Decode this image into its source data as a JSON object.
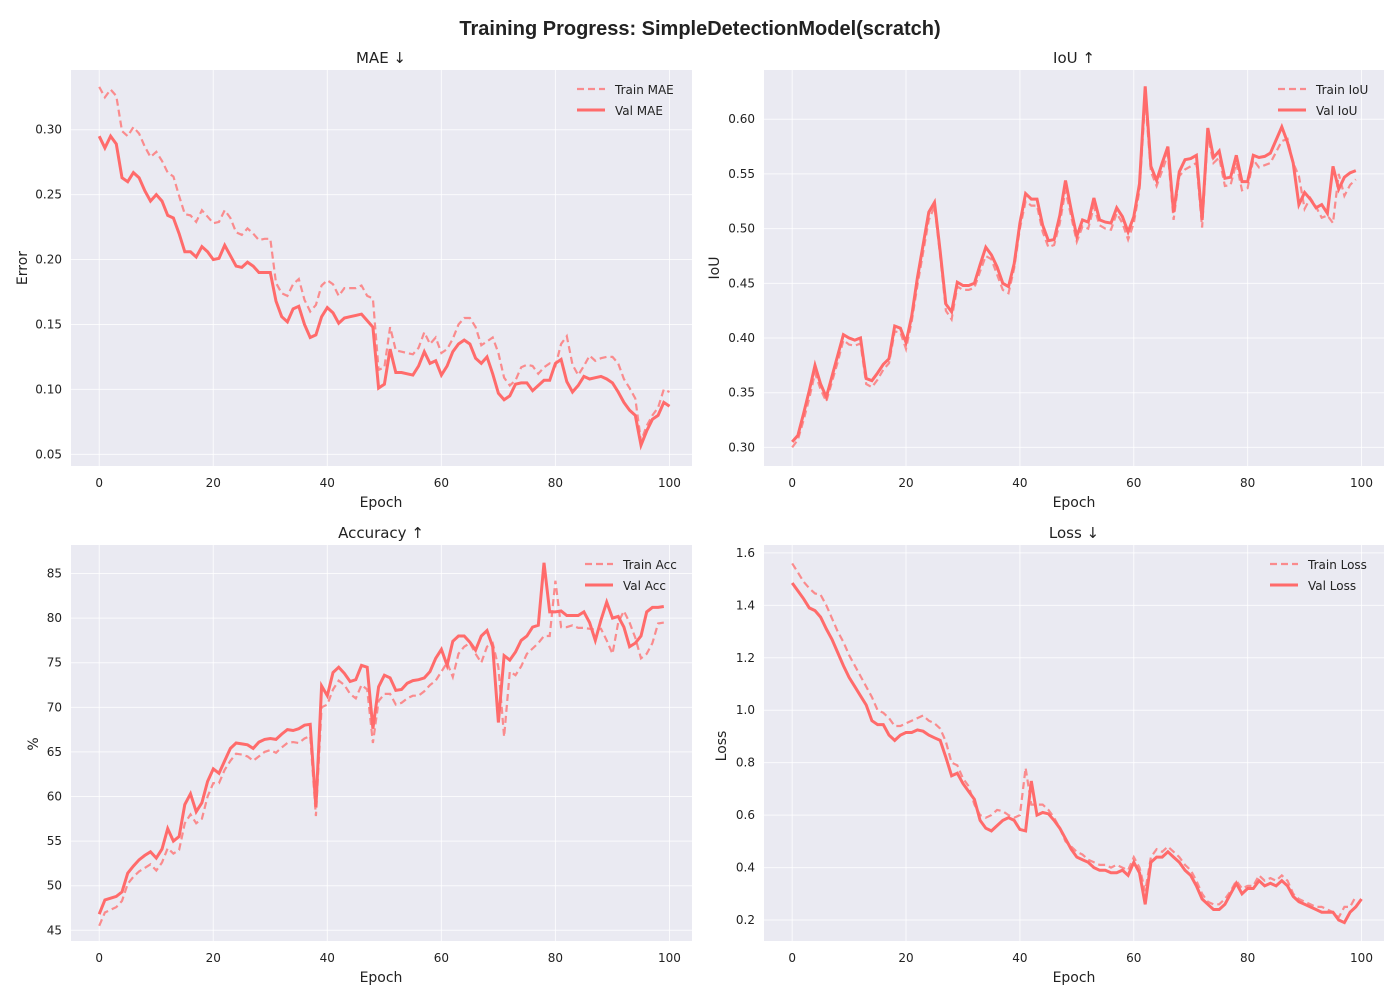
{
  "figure": {
    "title": "Training Progress: SimpleDetectionModel(scratch)",
    "line_color": "#FF6B6B",
    "background": "#EAEAF2"
  },
  "chart_data": [
    {
      "id": "mae",
      "type": "line",
      "title": "MAE ↓",
      "xlabel": "Epoch",
      "ylabel": "Error",
      "xlim": [
        -4.95,
        103.95
      ],
      "ylim": [
        0.041,
        0.346
      ],
      "xticks": [
        0,
        20,
        40,
        60,
        80,
        100
      ],
      "yticks": [
        0.05,
        0.1,
        0.15,
        0.2,
        0.25,
        0.3
      ],
      "ytick_labels": [
        "0.05",
        "0.10",
        "0.15",
        "0.20",
        "0.25",
        "0.30"
      ],
      "legend": "top-right",
      "grid": true,
      "series": [
        {
          "name": "Train MAE",
          "style": "dashed",
          "values": [
            0.333,
            0.325,
            0.331,
            0.326,
            0.299,
            0.295,
            0.302,
            0.297,
            0.287,
            0.279,
            0.283,
            0.276,
            0.267,
            0.264,
            0.249,
            0.235,
            0.234,
            0.229,
            0.238,
            0.233,
            0.228,
            0.229,
            0.238,
            0.232,
            0.221,
            0.219,
            0.224,
            0.22,
            0.215,
            0.216,
            0.216,
            0.182,
            0.174,
            0.172,
            0.181,
            0.185,
            0.169,
            0.16,
            0.165,
            0.18,
            0.184,
            0.181,
            0.172,
            0.178,
            0.178,
            0.178,
            0.18,
            0.172,
            0.17,
            0.115,
            0.117,
            0.148,
            0.13,
            0.129,
            0.128,
            0.127,
            0.132,
            0.144,
            0.135,
            0.14,
            0.128,
            0.131,
            0.139,
            0.15,
            0.155,
            0.155,
            0.148,
            0.134,
            0.137,
            0.14,
            0.128,
            0.109,
            0.103,
            0.107,
            0.117,
            0.119,
            0.118,
            0.112,
            0.117,
            0.12,
            0.118,
            0.135,
            0.141,
            0.119,
            0.111,
            0.118,
            0.126,
            0.122,
            0.124,
            0.125,
            0.125,
            0.12,
            0.108,
            0.101,
            0.093,
            0.06,
            0.072,
            0.08,
            0.086,
            0.1,
            0.098
          ]
        },
        {
          "name": "Val MAE",
          "style": "solid",
          "values": [
            0.295,
            0.286,
            0.295,
            0.289,
            0.263,
            0.26,
            0.267,
            0.263,
            0.253,
            0.245,
            0.25,
            0.245,
            0.234,
            0.232,
            0.22,
            0.206,
            0.206,
            0.202,
            0.21,
            0.206,
            0.2,
            0.201,
            0.211,
            0.203,
            0.195,
            0.194,
            0.198,
            0.195,
            0.19,
            0.19,
            0.19,
            0.168,
            0.156,
            0.152,
            0.162,
            0.164,
            0.15,
            0.14,
            0.142,
            0.156,
            0.163,
            0.159,
            0.151,
            0.155,
            0.156,
            0.157,
            0.158,
            0.153,
            0.148,
            0.101,
            0.104,
            0.131,
            0.113,
            0.113,
            0.112,
            0.111,
            0.118,
            0.129,
            0.12,
            0.122,
            0.111,
            0.118,
            0.129,
            0.135,
            0.138,
            0.135,
            0.124,
            0.12,
            0.125,
            0.112,
            0.097,
            0.092,
            0.095,
            0.104,
            0.105,
            0.105,
            0.099,
            0.103,
            0.107,
            0.107,
            0.12,
            0.123,
            0.106,
            0.098,
            0.103,
            0.11,
            0.108,
            0.109,
            0.11,
            0.108,
            0.105,
            0.098,
            0.09,
            0.084,
            0.08,
            0.057,
            0.068,
            0.077,
            0.08,
            0.09,
            0.087
          ]
        }
      ]
    },
    {
      "id": "iou",
      "type": "line",
      "title": "IoU ↑",
      "xlabel": "Epoch",
      "ylabel": "IoU",
      "xlim": [
        -4.95,
        103.95
      ],
      "ylim": [
        0.283,
        0.645
      ],
      "xticks": [
        0,
        20,
        40,
        60,
        80,
        100
      ],
      "yticks": [
        0.3,
        0.35,
        0.4,
        0.45,
        0.5,
        0.55,
        0.6
      ],
      "ytick_labels": [
        "0.30",
        "0.35",
        "0.40",
        "0.45",
        "0.50",
        "0.55",
        "0.60"
      ],
      "legend": "top-right",
      "grid": true,
      "series": [
        {
          "name": "Train IoU",
          "style": "dashed",
          "values": [
            0.3,
            0.307,
            0.325,
            0.345,
            0.368,
            0.353,
            0.342,
            0.36,
            0.378,
            0.398,
            0.394,
            0.393,
            0.395,
            0.358,
            0.355,
            0.362,
            0.371,
            0.377,
            0.406,
            0.405,
            0.39,
            0.415,
            0.448,
            0.478,
            0.508,
            0.52,
            0.475,
            0.425,
            0.417,
            0.447,
            0.444,
            0.444,
            0.446,
            0.461,
            0.475,
            0.472,
            0.458,
            0.444,
            0.441,
            0.464,
            0.5,
            0.525,
            0.521,
            0.521,
            0.497,
            0.483,
            0.485,
            0.505,
            0.535,
            0.511,
            0.488,
            0.502,
            0.5,
            0.52,
            0.503,
            0.5,
            0.499,
            0.514,
            0.505,
            0.49,
            0.505,
            0.535,
            0.618,
            0.552,
            0.539,
            0.553,
            0.568,
            0.508,
            0.548,
            0.554,
            0.557,
            0.56,
            0.501,
            0.585,
            0.56,
            0.565,
            0.539,
            0.54,
            0.56,
            0.535,
            0.537,
            0.563,
            0.556,
            0.558,
            0.56,
            0.57,
            0.58,
            0.582,
            0.56,
            0.548,
            0.518,
            0.528,
            0.52,
            0.51,
            0.512,
            0.505,
            0.55,
            0.53,
            0.54,
            0.545
          ]
        },
        {
          "name": "Val IoU",
          "style": "solid",
          "values": [
            0.305,
            0.311,
            0.331,
            0.352,
            0.375,
            0.358,
            0.346,
            0.365,
            0.384,
            0.403,
            0.4,
            0.398,
            0.4,
            0.363,
            0.361,
            0.368,
            0.376,
            0.381,
            0.411,
            0.409,
            0.396,
            0.42,
            0.455,
            0.485,
            0.515,
            0.524,
            0.479,
            0.431,
            0.424,
            0.451,
            0.448,
            0.448,
            0.45,
            0.467,
            0.483,
            0.476,
            0.465,
            0.45,
            0.447,
            0.468,
            0.505,
            0.532,
            0.527,
            0.527,
            0.503,
            0.489,
            0.49,
            0.512,
            0.544,
            0.517,
            0.493,
            0.508,
            0.506,
            0.528,
            0.508,
            0.506,
            0.505,
            0.519,
            0.511,
            0.497,
            0.511,
            0.541,
            0.63,
            0.557,
            0.544,
            0.56,
            0.575,
            0.515,
            0.552,
            0.563,
            0.564,
            0.567,
            0.508,
            0.592,
            0.565,
            0.571,
            0.546,
            0.547,
            0.567,
            0.543,
            0.543,
            0.567,
            0.565,
            0.566,
            0.569,
            0.581,
            0.593,
            0.579,
            0.56,
            0.522,
            0.533,
            0.527,
            0.519,
            0.522,
            0.514,
            0.557,
            0.536,
            0.547,
            0.551,
            0.553
          ]
        }
      ]
    },
    {
      "id": "accuracy",
      "type": "line",
      "title": "Accuracy ↑",
      "xlabel": "Epoch",
      "ylabel": "%",
      "xlim": [
        -4.95,
        103.95
      ],
      "ylim": [
        43.8,
        88.2
      ],
      "xticks": [
        0,
        20,
        40,
        60,
        80,
        100
      ],
      "yticks": [
        45,
        50,
        55,
        60,
        65,
        70,
        75,
        80,
        85
      ],
      "ytick_labels": [
        "45",
        "50",
        "55",
        "60",
        "65",
        "70",
        "75",
        "80",
        "85"
      ],
      "legend": "top-right",
      "grid": true,
      "series": [
        {
          "name": "Train Acc",
          "style": "dashed",
          "values": [
            45.5,
            47.0,
            47.3,
            47.6,
            48.3,
            50.2,
            51.0,
            51.6,
            52.0,
            52.4,
            51.7,
            52.6,
            54.2,
            53.6,
            54.0,
            57.0,
            58.0,
            57.0,
            57.5,
            60.0,
            61.5,
            61.5,
            63.0,
            64.0,
            64.8,
            64.7,
            64.5,
            64.0,
            64.5,
            65.0,
            65.2,
            64.9,
            65.5,
            66.0,
            66.1,
            66.0,
            66.5,
            66.8,
            57.8,
            70.0,
            70.3,
            72.0,
            73.0,
            72.5,
            71.5,
            71.0,
            72.5,
            72.0,
            66.0,
            70.7,
            71.5,
            71.5,
            70.3,
            70.5,
            71.0,
            71.3,
            71.3,
            71.8,
            72.5,
            73.0,
            74.0,
            75.0,
            73.4,
            76.0,
            76.8,
            77.2,
            76.0,
            75.0,
            76.8,
            77.2,
            74.5,
            66.7,
            74.0,
            73.6,
            74.6,
            76.0,
            76.6,
            77.2,
            78.0,
            78.0,
            84.2,
            79.0,
            79.0,
            79.2,
            78.9,
            78.9,
            78.8,
            78.7,
            78.8,
            77.5,
            76.0,
            79.5,
            80.8,
            79.5,
            77.8,
            75.5,
            76.0,
            77.2,
            79.4,
            79.5
          ]
        },
        {
          "name": "Val Acc",
          "style": "solid",
          "values": [
            46.8,
            48.4,
            48.6,
            48.8,
            49.3,
            51.4,
            52.2,
            52.9,
            53.4,
            53.8,
            53.1,
            54.1,
            56.4,
            55.0,
            55.5,
            59.1,
            60.3,
            58.3,
            59.3,
            61.7,
            63.1,
            62.6,
            64.0,
            65.4,
            66.0,
            65.9,
            65.8,
            65.4,
            66.1,
            66.4,
            66.5,
            66.4,
            67.0,
            67.5,
            67.4,
            67.6,
            68.0,
            68.1,
            58.8,
            72.4,
            71.3,
            73.9,
            74.5,
            73.8,
            72.9,
            73.1,
            74.7,
            74.5,
            67.6,
            72.3,
            73.6,
            73.3,
            71.9,
            72.0,
            72.7,
            73.0,
            73.1,
            73.3,
            74.0,
            75.5,
            76.5,
            74.7,
            77.4,
            78.0,
            78.0,
            77.3,
            76.4,
            78.0,
            78.6,
            76.8,
            68.3,
            75.8,
            75.3,
            76.2,
            77.5,
            78.0,
            79.0,
            79.2,
            86.2,
            80.7,
            80.7,
            80.8,
            80.3,
            80.3,
            80.3,
            80.7,
            79.5,
            77.5,
            79.8,
            81.8,
            80.0,
            80.2,
            79.0,
            76.8,
            77.2,
            78.0,
            80.7,
            81.2,
            81.2,
            81.3
          ]
        }
      ]
    },
    {
      "id": "loss",
      "type": "line",
      "title": "Loss ↓",
      "xlabel": "Epoch",
      "ylabel": "Loss",
      "xlim": [
        -4.95,
        103.95
      ],
      "ylim": [
        0.12,
        1.63
      ],
      "xticks": [
        0,
        20,
        40,
        60,
        80,
        100
      ],
      "yticks": [
        0.2,
        0.4,
        0.6,
        0.8,
        1.0,
        1.2,
        1.4,
        1.6
      ],
      "ytick_labels": [
        "0.2",
        "0.4",
        "0.6",
        "0.8",
        "1.0",
        "1.2",
        "1.4",
        "1.6"
      ],
      "legend": "top-right",
      "grid": true,
      "series": [
        {
          "name": "Train Loss",
          "style": "dashed",
          "values": [
            1.56,
            1.525,
            1.49,
            1.465,
            1.445,
            1.44,
            1.4,
            1.35,
            1.3,
            1.26,
            1.21,
            1.17,
            1.13,
            1.09,
            1.05,
            1.0,
            0.99,
            0.97,
            0.94,
            0.94,
            0.95,
            0.96,
            0.97,
            0.98,
            0.96,
            0.95,
            0.93,
            0.88,
            0.8,
            0.79,
            0.74,
            0.71,
            0.64,
            0.6,
            0.59,
            0.6,
            0.62,
            0.615,
            0.6,
            0.59,
            0.6,
            0.78,
            0.64,
            0.64,
            0.64,
            0.62,
            0.59,
            0.55,
            0.5,
            0.48,
            0.46,
            0.45,
            0.43,
            0.42,
            0.41,
            0.41,
            0.4,
            0.41,
            0.4,
            0.39,
            0.44,
            0.4,
            0.31,
            0.44,
            0.47,
            0.46,
            0.48,
            0.46,
            0.44,
            0.41,
            0.39,
            0.35,
            0.3,
            0.27,
            0.26,
            0.26,
            0.28,
            0.31,
            0.35,
            0.32,
            0.33,
            0.33,
            0.37,
            0.35,
            0.36,
            0.35,
            0.37,
            0.35,
            0.3,
            0.28,
            0.27,
            0.26,
            0.25,
            0.25,
            0.24,
            0.23,
            0.21,
            0.25,
            0.25,
            0.29
          ]
        },
        {
          "name": "Val Loss",
          "style": "solid",
          "values": [
            1.485,
            1.455,
            1.425,
            1.39,
            1.38,
            1.355,
            1.31,
            1.27,
            1.22,
            1.17,
            1.125,
            1.09,
            1.055,
            1.02,
            0.96,
            0.945,
            0.945,
            0.905,
            0.885,
            0.905,
            0.915,
            0.915,
            0.925,
            0.92,
            0.905,
            0.895,
            0.885,
            0.82,
            0.75,
            0.76,
            0.72,
            0.69,
            0.66,
            0.58,
            0.55,
            0.54,
            0.56,
            0.58,
            0.59,
            0.58,
            0.545,
            0.54,
            0.73,
            0.6,
            0.61,
            0.605,
            0.58,
            0.55,
            0.51,
            0.47,
            0.44,
            0.43,
            0.42,
            0.4,
            0.39,
            0.39,
            0.38,
            0.38,
            0.39,
            0.37,
            0.42,
            0.38,
            0.26,
            0.42,
            0.44,
            0.44,
            0.46,
            0.44,
            0.42,
            0.39,
            0.37,
            0.33,
            0.28,
            0.26,
            0.24,
            0.24,
            0.26,
            0.3,
            0.34,
            0.3,
            0.32,
            0.32,
            0.35,
            0.33,
            0.34,
            0.33,
            0.35,
            0.33,
            0.29,
            0.27,
            0.26,
            0.25,
            0.24,
            0.23,
            0.23,
            0.23,
            0.2,
            0.19,
            0.23,
            0.25,
            0.28
          ]
        }
      ]
    }
  ]
}
